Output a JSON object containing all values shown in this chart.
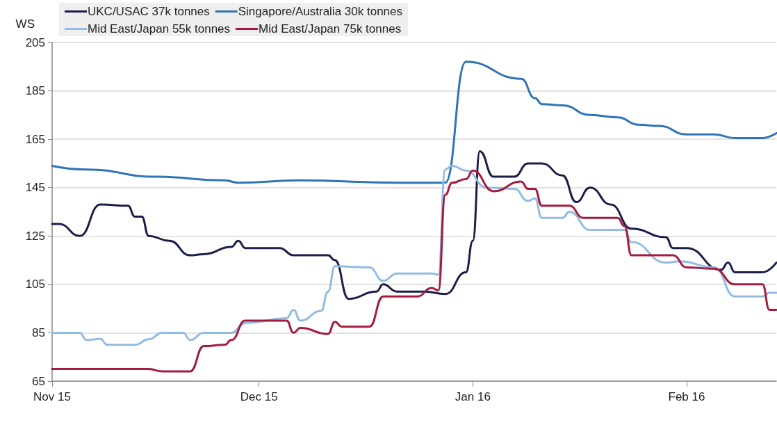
{
  "chart_data": {
    "type": "line",
    "ylabel": "WS",
    "xlim": [
      "2015-11-01",
      "2016-02-14"
    ],
    "xticks": [
      {
        "value": "2015-11-01",
        "label": "Nov 15"
      },
      {
        "value": "2015-12-01",
        "label": "Dec 15"
      },
      {
        "value": "2016-01-01",
        "label": "Jan 16"
      },
      {
        "value": "2016-02-01",
        "label": "Feb 16"
      }
    ],
    "ylim": [
      65,
      205
    ],
    "yticks": [
      65,
      85,
      105,
      125,
      145,
      165,
      185,
      205
    ],
    "grid": "y",
    "legend": "top",
    "marker": "none",
    "line_style": "solid",
    "series": [
      {
        "name": "UKC/USAC 37k tonnes",
        "color": "#1b1e4b",
        "x": [
          "2015-11-01",
          "2015-11-02",
          "2015-11-05",
          "2015-11-08",
          "2015-11-12",
          "2015-11-13",
          "2015-11-14",
          "2015-11-15",
          "2015-11-18",
          "2015-11-21",
          "2015-11-23",
          "2015-11-27",
          "2015-11-28",
          "2015-11-29",
          "2015-12-04",
          "2015-12-06",
          "2015-12-11",
          "2015-12-12",
          "2015-12-14",
          "2015-12-18",
          "2015-12-19",
          "2015-12-21",
          "2015-12-25",
          "2015-12-28",
          "2015-12-31",
          "2016-01-01",
          "2016-01-02",
          "2016-01-04",
          "2016-01-07",
          "2016-01-09",
          "2016-01-11",
          "2016-01-14",
          "2016-01-16",
          "2016-01-18",
          "2016-01-21",
          "2016-01-24",
          "2016-01-29",
          "2016-01-30",
          "2016-02-01",
          "2016-02-06",
          "2016-02-07",
          "2016-02-08",
          "2016-02-12",
          "2016-02-14"
        ],
        "values": [
          130,
          130,
          125,
          138,
          137.5,
          133,
          133,
          125,
          123,
          117,
          117.5,
          120.5,
          123,
          120,
          120,
          117,
          117,
          115,
          99,
          102,
          105,
          102,
          102,
          101,
          110,
          123,
          160,
          149.5,
          149.5,
          155,
          155,
          150,
          139,
          145,
          138,
          128,
          124.5,
          120,
          120,
          111,
          114,
          110,
          110,
          114
        ]
      },
      {
        "name": "Singapore/Australia 30k tonnes",
        "color": "#2f74b5",
        "x": [
          "2015-11-01",
          "2015-11-06",
          "2015-11-16",
          "2015-11-26",
          "2015-11-28",
          "2015-12-07",
          "2015-12-21",
          "2015-12-28",
          "2015-12-31",
          "2016-01-08",
          "2016-01-10",
          "2016-01-11",
          "2016-01-14",
          "2016-01-18",
          "2016-01-22",
          "2016-01-25",
          "2016-01-28",
          "2016-02-01",
          "2016-02-05",
          "2016-02-08",
          "2016-02-12",
          "2016-02-14"
        ],
        "values": [
          154,
          152.5,
          149.5,
          148,
          147,
          148,
          147,
          147,
          197,
          190,
          182,
          179.5,
          179,
          175,
          174,
          171,
          170.5,
          167,
          167,
          165.5,
          165.5,
          167.5
        ]
      },
      {
        "name": "Mid East/Japan 55k tonnes",
        "color": "#92bce2",
        "x": [
          "2015-11-01",
          "2015-11-05",
          "2015-11-06",
          "2015-11-08",
          "2015-11-09",
          "2015-11-13",
          "2015-11-15",
          "2015-11-17",
          "2015-11-20",
          "2015-11-21",
          "2015-11-23",
          "2015-11-27",
          "2015-11-29",
          "2015-12-05",
          "2015-12-06",
          "2015-12-07",
          "2015-12-10",
          "2015-12-11",
          "2015-12-12",
          "2015-12-17",
          "2015-12-19",
          "2015-12-21",
          "2015-12-26",
          "2015-12-27",
          "2015-12-28",
          "2015-12-29",
          "2015-12-31",
          "2016-01-03",
          "2016-01-07",
          "2016-01-09",
          "2016-01-10",
          "2016-01-11",
          "2016-01-14",
          "2016-01-15",
          "2016-01-18",
          "2016-01-23",
          "2016-01-24",
          "2016-01-29",
          "2016-01-31",
          "2016-02-05",
          "2016-02-08",
          "2016-02-12",
          "2016-02-13",
          "2016-02-14"
        ],
        "values": [
          85,
          85,
          82,
          82.5,
          80,
          80,
          82.3,
          85,
          85,
          82,
          85,
          85,
          89,
          91,
          94.5,
          90,
          94,
          102,
          112.5,
          112,
          106.5,
          109.5,
          109.5,
          109,
          152.5,
          154,
          152,
          145,
          144.5,
          139.5,
          140.5,
          132.5,
          132.5,
          135,
          127.5,
          127.5,
          122.5,
          114,
          114.5,
          112,
          100,
          100,
          101.5,
          101.5
        ]
      },
      {
        "name": "Mid East/Japan 75k tonnes",
        "color": "#a61a3c",
        "x": [
          "2015-11-01",
          "2015-11-15",
          "2015-11-17",
          "2015-11-21",
          "2015-11-23",
          "2015-11-26",
          "2015-11-27",
          "2015-11-29",
          "2015-12-05",
          "2015-12-06",
          "2015-12-07",
          "2015-12-11",
          "2015-12-12",
          "2015-12-13",
          "2015-12-17",
          "2015-12-19",
          "2015-12-24",
          "2015-12-26",
          "2015-12-27",
          "2015-12-28",
          "2015-12-29",
          "2015-12-31",
          "2016-01-01",
          "2016-01-04",
          "2016-01-08",
          "2016-01-09",
          "2016-01-10",
          "2016-01-11",
          "2016-01-15",
          "2016-01-17",
          "2016-01-22",
          "2016-01-23",
          "2016-01-24",
          "2016-01-30",
          "2016-02-01",
          "2016-02-05",
          "2016-02-08",
          "2016-02-12",
          "2016-02-13",
          "2016-02-14"
        ],
        "values": [
          70,
          70,
          69,
          69,
          79.5,
          80,
          82,
          90,
          90,
          85,
          87,
          84.5,
          89.5,
          87.5,
          87.5,
          100,
          100,
          103.5,
          102.5,
          142,
          147,
          148.5,
          152,
          143.5,
          147.5,
          144.5,
          144.5,
          137.5,
          137.5,
          132.5,
          132.5,
          129,
          117,
          117,
          112,
          111.5,
          105,
          105,
          94.5,
          94.5
        ]
      }
    ]
  }
}
